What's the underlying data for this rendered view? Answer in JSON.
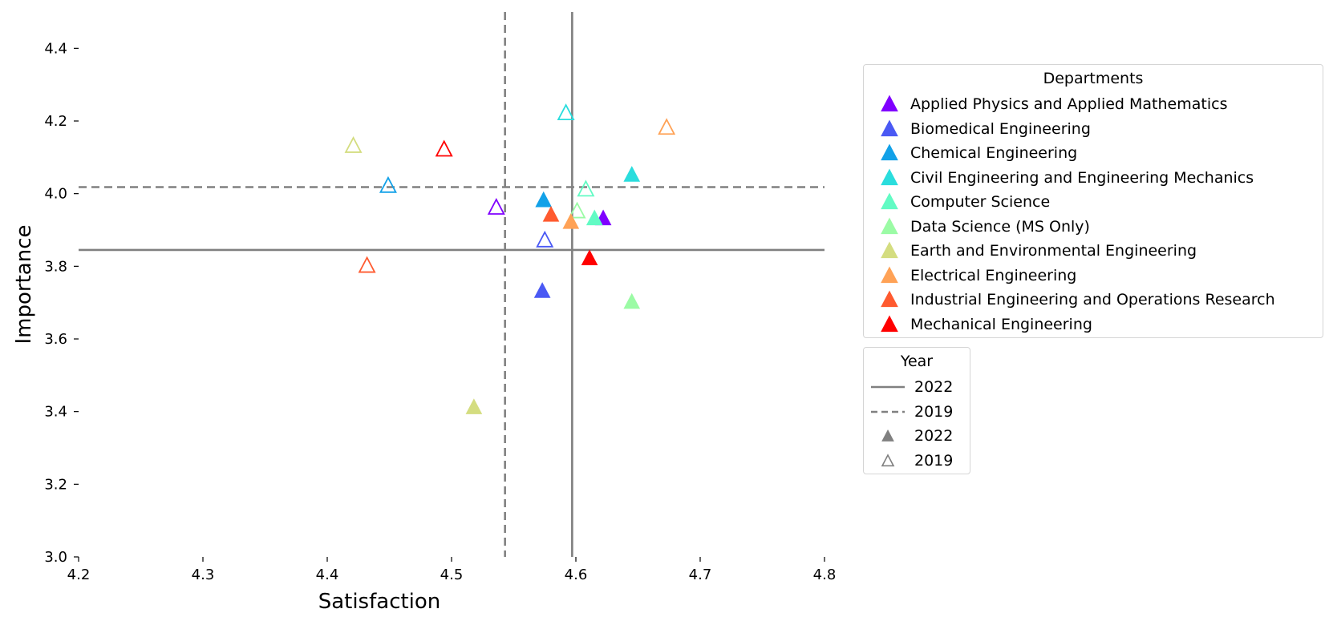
{
  "chart_data": {
    "type": "scatter",
    "xlabel": "Satisfaction",
    "ylabel": "Importance",
    "xlim": [
      4.2,
      4.8
    ],
    "ylim": [
      3.0,
      4.5
    ],
    "xticks": [
      "4.2",
      "4.3",
      "4.4",
      "4.5",
      "4.6",
      "4.7",
      "4.8"
    ],
    "yticks": [
      "3.0",
      "3.2",
      "3.4",
      "3.6",
      "3.8",
      "4.0",
      "4.2",
      "4.4"
    ],
    "grid": false,
    "reference_lines": [
      {
        "year": "2022",
        "style": "solid",
        "x": 4.597,
        "y": 3.845
      },
      {
        "year": "2019",
        "style": "dashed",
        "x": 4.543,
        "y": 4.018
      }
    ],
    "departments_legend": {
      "title": "Departments",
      "placement": "right-top"
    },
    "year_legend": {
      "title": "Year",
      "entries": [
        {
          "label": "2022",
          "kind": "solid-line"
        },
        {
          "label": "2019",
          "kind": "dashed-line"
        },
        {
          "label": "2022",
          "kind": "filled-triangle"
        },
        {
          "label": "2019",
          "kind": "hollow-triangle"
        }
      ]
    },
    "series": [
      {
        "name": "Applied Physics and Applied Mathematics",
        "color": "#8000ff",
        "points": [
          {
            "year": "2022",
            "x": 4.622,
            "y": 3.93
          },
          {
            "year": "2019",
            "x": 4.536,
            "y": 3.96
          }
        ]
      },
      {
        "name": "Biomedical Engineering",
        "color": "#4a59f4",
        "points": [
          {
            "year": "2022",
            "x": 4.573,
            "y": 3.73
          },
          {
            "year": "2019",
            "x": 4.575,
            "y": 3.87
          }
        ]
      },
      {
        "name": "Chemical Engineering",
        "color": "#12a1e8",
        "points": [
          {
            "year": "2022",
            "x": 4.574,
            "y": 3.98
          },
          {
            "year": "2019",
            "x": 4.449,
            "y": 4.02
          }
        ]
      },
      {
        "name": "Civil Engineering and Engineering Mechanics",
        "color": "#2adddd",
        "points": [
          {
            "year": "2022",
            "x": 4.645,
            "y": 4.05
          },
          {
            "year": "2019",
            "x": 4.592,
            "y": 4.22
          }
        ]
      },
      {
        "name": "Computer Science",
        "color": "#62fbc4",
        "points": [
          {
            "year": "2022",
            "x": 4.615,
            "y": 3.93
          },
          {
            "year": "2019",
            "x": 4.608,
            "y": 4.01
          }
        ]
      },
      {
        "name": "Data Science (MS Only)",
        "color": "#9bfba5",
        "points": [
          {
            "year": "2022",
            "x": 4.645,
            "y": 3.7
          },
          {
            "year": "2019",
            "x": 4.601,
            "y": 3.95
          }
        ]
      },
      {
        "name": "Earth and Environmental Engineering",
        "color": "#d4dd80",
        "points": [
          {
            "year": "2022",
            "x": 4.518,
            "y": 3.41
          },
          {
            "year": "2019",
            "x": 4.421,
            "y": 4.13
          }
        ]
      },
      {
        "name": "Electrical Engineering",
        "color": "#ffa256",
        "points": [
          {
            "year": "2022",
            "x": 4.596,
            "y": 3.92
          },
          {
            "year": "2019",
            "x": 4.673,
            "y": 4.18
          }
        ]
      },
      {
        "name": "Industrial Engineering and Operations Research",
        "color": "#ff5a2f",
        "points": [
          {
            "year": "2022",
            "x": 4.58,
            "y": 3.94
          },
          {
            "year": "2019",
            "x": 4.432,
            "y": 3.8
          }
        ]
      },
      {
        "name": "Mechanical Engineering",
        "color": "#ff0000",
        "points": [
          {
            "year": "2022",
            "x": 4.611,
            "y": 3.82
          },
          {
            "year": "2019",
            "x": 4.494,
            "y": 4.12
          }
        ]
      }
    ]
  }
}
